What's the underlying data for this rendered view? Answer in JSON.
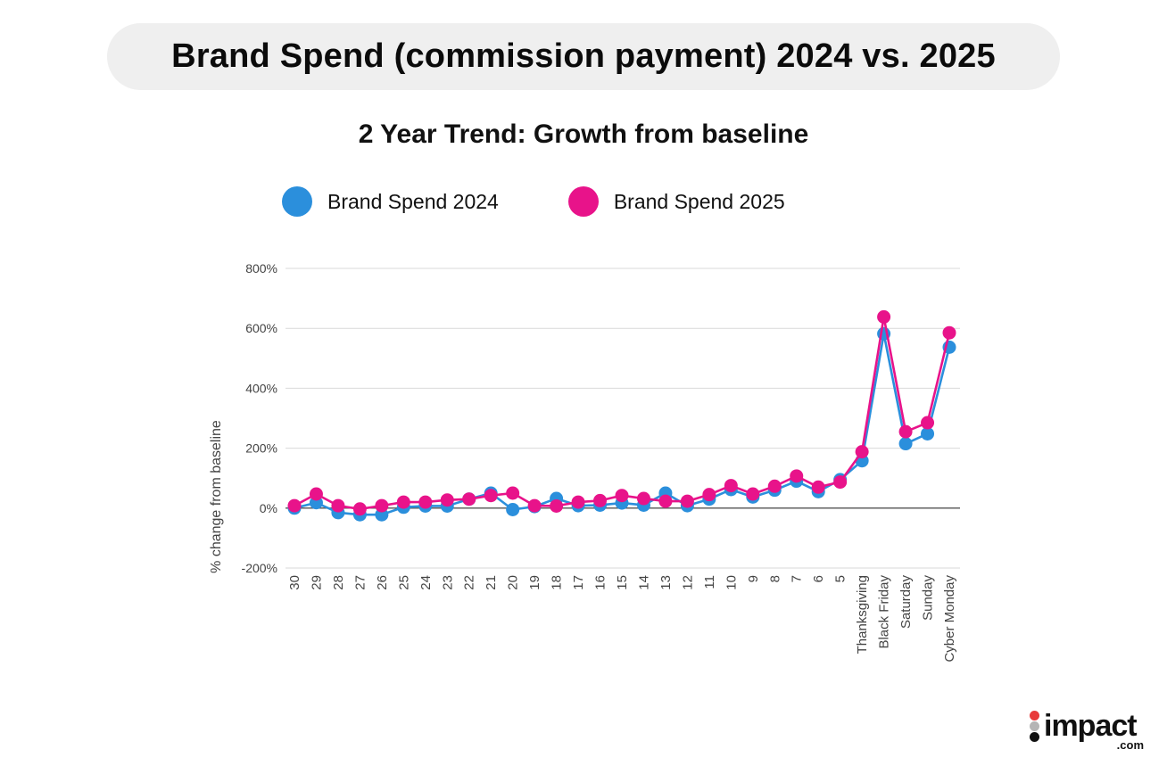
{
  "header": {
    "title": "Brand Spend (commission payment) 2024 vs. 2025"
  },
  "colors": {
    "series_2024": "#2b8fdc",
    "series_2025": "#e8138a",
    "grid": "#d9d9d9",
    "baseline": "#555555",
    "header_bg": "#efefef"
  },
  "logo": {
    "word": "impact",
    "suffix": ".com",
    "dot_colors": [
      "#e83a3a",
      "#b5b5b5",
      "#111111"
    ]
  },
  "chart_data": {
    "type": "line",
    "title": "2 Year Trend: Growth from baseline",
    "xlabel": "",
    "ylabel": "% change from baseline",
    "ylim": [
      -200,
      800
    ],
    "yticks": [
      -200,
      0,
      200,
      400,
      600,
      800
    ],
    "ytick_labels": [
      "-200%",
      "0%",
      "200%",
      "400%",
      "600%",
      "800%"
    ],
    "grid": true,
    "legend_position": "top",
    "categories": [
      "30",
      "29",
      "28",
      "27",
      "26",
      "25",
      "24",
      "23",
      "22",
      "21",
      "20",
      "19",
      "18",
      "17",
      "16",
      "15",
      "14",
      "13",
      "12",
      "11",
      "10",
      "9",
      "8",
      "7",
      "6",
      "5",
      "Thanksgiving",
      "Black Friday",
      "Saturday",
      "Sunday",
      "Cyber Monday"
    ],
    "series": [
      {
        "name": "Brand Spend 2024",
        "color": "#2b8fdc",
        "values": [
          0,
          18,
          -15,
          -22,
          -22,
          3,
          7,
          7,
          30,
          50,
          -5,
          5,
          32,
          8,
          10,
          17,
          10,
          50,
          8,
          30,
          62,
          37,
          60,
          90,
          55,
          95,
          158,
          582,
          215,
          248,
          537
        ]
      },
      {
        "name": "Brand Spend 2025",
        "color": "#e8138a",
        "values": [
          8,
          47,
          8,
          -3,
          8,
          20,
          20,
          27,
          30,
          42,
          50,
          8,
          7,
          20,
          25,
          42,
          32,
          23,
          23,
          45,
          75,
          47,
          73,
          107,
          70,
          87,
          188,
          638,
          255,
          285,
          585
        ]
      }
    ]
  }
}
